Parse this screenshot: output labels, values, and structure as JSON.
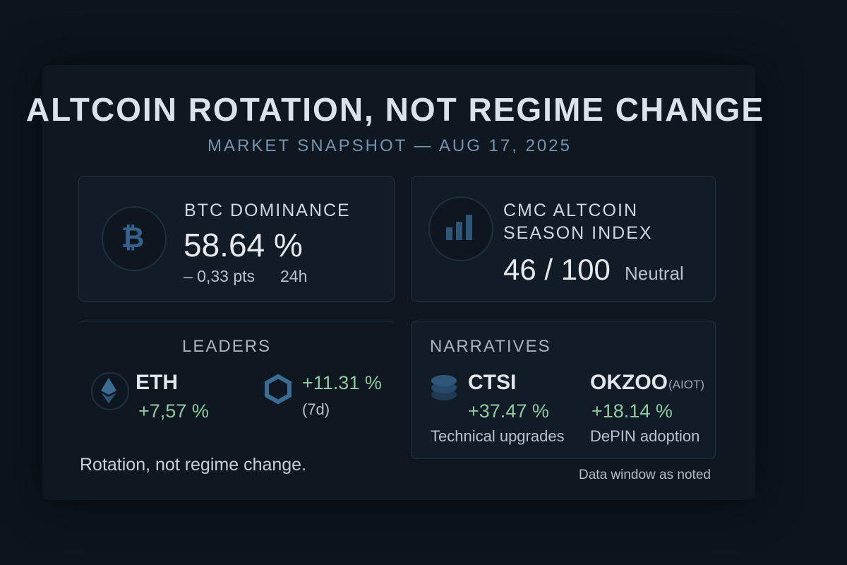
{
  "header": {
    "title": "ALTCOIN ROTATION, NOT REGIME CHANGE",
    "subtitle": "MARKET SNAPSHOT — AUG 17, 2025"
  },
  "dominance": {
    "label": "BTC DOMINANCE",
    "value": "58.64 %",
    "change": "– 0,33 pts",
    "window": "24h",
    "icon": "bitcoin-icon"
  },
  "altseason": {
    "label_line1": "CMC ALTCOIN",
    "label_line2": "SEASON INDEX",
    "value": "46 / 100",
    "status": "Neutral",
    "icon": "bar-chart-icon"
  },
  "leaders": {
    "heading": "LEADERS",
    "items": [
      {
        "symbol": "ETH",
        "change": "+7,57 %",
        "icon": "ethereum-icon"
      },
      {
        "change": "+11.31 %",
        "window": "(7d)",
        "icon": "hexagon-icon"
      }
    ]
  },
  "narratives": {
    "heading": "NARRATIVES",
    "items": [
      {
        "symbol": "CTSI",
        "change": "+37.47 %",
        "note": "Technical upgrades",
        "icon": "coin-stack-icon"
      },
      {
        "symbol": "OKZOO",
        "tag": "(AIOT)",
        "change": "+18.14 %",
        "note": "DePIN adoption"
      }
    ]
  },
  "footer": {
    "summary": "Rotation, not regime change.",
    "data_note": "Data window as noted"
  },
  "colors": {
    "background": "#0c141c",
    "card": "#111c26",
    "accent_blue": "#7893ae",
    "positive": "#8fc9a3",
    "icon": "#3a6a8f"
  }
}
